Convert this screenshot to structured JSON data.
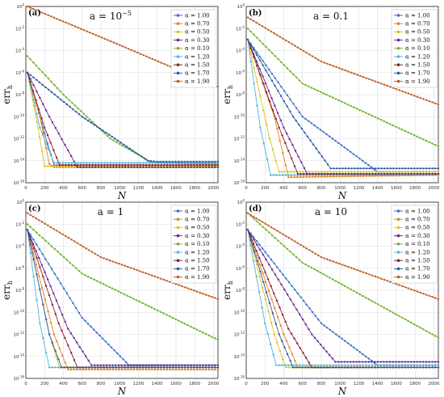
{
  "figure": {
    "ylabel": "err",
    "ylabel_sub": "h",
    "xlabel": "N"
  },
  "colors": [
    "#3a6fc8",
    "#e5851f",
    "#e3c21c",
    "#6a2a8c",
    "#72b52b",
    "#4fb8d8",
    "#8b1f2a",
    "#2d5aa6",
    "#c0602a"
  ],
  "chart_data": [
    {
      "type": "line",
      "panel": "(a)",
      "title": "a = 10",
      "title_sup": "−5",
      "xlim": [
        0,
        2048
      ],
      "ylim_log10": [
        -16,
        0
      ],
      "xticks": [
        0,
        200,
        400,
        600,
        800,
        1000,
        1200,
        1400,
        1600,
        1800,
        2000
      ],
      "yticks_log10": [
        -16,
        -14,
        -12,
        -10,
        -8,
        -6,
        -4,
        -2,
        0
      ],
      "series": [
        {
          "name": "α = 1.00",
          "points": [
            [
              16,
              -6
            ],
            [
              200,
              -11.5
            ],
            [
              300,
              -14.4
            ],
            [
              2048,
              -14.4
            ]
          ]
        },
        {
          "name": "α = 0.70",
          "points": [
            [
              16,
              -6
            ],
            [
              150,
              -10
            ],
            [
              250,
              -14.3
            ],
            [
              300,
              -14.6
            ],
            [
              2048,
              -14.6
            ]
          ]
        },
        {
          "name": "α = 0.50",
          "points": [
            [
              16,
              -6
            ],
            [
              120,
              -10.5
            ],
            [
              200,
              -14.5
            ],
            [
              2048,
              -14.5
            ]
          ]
        },
        {
          "name": "α = 0.30",
          "points": [
            [
              16,
              -6
            ],
            [
              250,
              -10
            ],
            [
              550,
              -14.6
            ],
            [
              2048,
              -14.6
            ]
          ]
        },
        {
          "name": "α = 0.10",
          "points": [
            [
              16,
              -4.5
            ],
            [
              400,
              -8
            ],
            [
              900,
              -12
            ],
            [
              1350,
              -14.2
            ],
            [
              2048,
              -14.3
            ]
          ]
        },
        {
          "name": "α = 1.20",
          "points": [
            [
              16,
              -6
            ],
            [
              150,
              -11
            ],
            [
              300,
              -14.2
            ],
            [
              2048,
              -14.2
            ]
          ]
        },
        {
          "name": "α = 1.50",
          "points": [
            [
              16,
              -6
            ],
            [
              200,
              -11
            ],
            [
              360,
              -14.4
            ],
            [
              2048,
              -14.4
            ]
          ]
        },
        {
          "name": "α = 1.70",
          "points": [
            [
              16,
              -6
            ],
            [
              600,
              -10
            ],
            [
              1300,
              -14
            ],
            [
              1400,
              -14.1
            ],
            [
              2048,
              -14.1
            ]
          ]
        },
        {
          "name": "α = 1.90",
          "points": [
            [
              16,
              0
            ],
            [
              1000,
              -3.5
            ],
            [
              2048,
              -7.3
            ]
          ]
        }
      ],
      "legend": "top-right"
    },
    {
      "type": "line",
      "panel": "(b)",
      "title": "a = 0.1",
      "xlim": [
        0,
        2048
      ],
      "ylim_log10": [
        -16,
        0
      ],
      "xticks": [
        0,
        200,
        400,
        600,
        800,
        1000,
        1200,
        1400,
        1600,
        1800,
        2000
      ],
      "yticks_log10": [
        -16,
        -14,
        -12,
        -10,
        -8,
        -6,
        -4,
        -2,
        0
      ],
      "series": [
        {
          "name": "α = 1.00",
          "points": [
            [
              16,
              -3
            ],
            [
              600,
              -10
            ],
            [
              1400,
              -15
            ],
            [
              2048,
              -15
            ]
          ]
        },
        {
          "name": "α = 0.70",
          "points": [
            [
              16,
              -3
            ],
            [
              300,
              -10
            ],
            [
              450,
              -15.5
            ],
            [
              2048,
              -15.3
            ]
          ]
        },
        {
          "name": "α = 0.50",
          "points": [
            [
              16,
              -3
            ],
            [
              250,
              -12
            ],
            [
              350,
              -15
            ],
            [
              2048,
              -15
            ]
          ]
        },
        {
          "name": "α = 0.30",
          "points": [
            [
              16,
              -3
            ],
            [
              400,
              -11
            ],
            [
              650,
              -15.2
            ],
            [
              2048,
              -15.2
            ]
          ]
        },
        {
          "name": "α = 0.10",
          "points": [
            [
              16,
              -2
            ],
            [
              600,
              -7
            ],
            [
              2048,
              -12.7
            ]
          ]
        },
        {
          "name": "α = 1.20",
          "points": [
            [
              16,
              -3
            ],
            [
              150,
              -11
            ],
            [
              260,
              -15.3
            ],
            [
              2048,
              -15.3
            ]
          ]
        },
        {
          "name": "α = 1.50",
          "points": [
            [
              16,
              -3
            ],
            [
              350,
              -11
            ],
            [
              550,
              -15.2
            ],
            [
              2048,
              -15.2
            ]
          ]
        },
        {
          "name": "α = 1.70",
          "points": [
            [
              16,
              -3
            ],
            [
              500,
              -10
            ],
            [
              900,
              -14.7
            ],
            [
              2048,
              -14.7
            ]
          ]
        },
        {
          "name": "α = 1.90",
          "points": [
            [
              16,
              -1
            ],
            [
              800,
              -5
            ],
            [
              2048,
              -8.9
            ]
          ]
        }
      ],
      "legend": "top-right"
    },
    {
      "type": "line",
      "panel": "(c)",
      "title": "a = 1",
      "xlim": [
        0,
        2048
      ],
      "ylim_log10": [
        -16,
        0
      ],
      "xticks": [
        0,
        200,
        400,
        600,
        800,
        1000,
        1200,
        1400,
        1600,
        1800,
        2000
      ],
      "yticks_log10": [
        -16,
        -14,
        -12,
        -10,
        -8,
        -6,
        -4,
        -2,
        0
      ],
      "series": [
        {
          "name": "α = 1.00",
          "points": [
            [
              16,
              -2.5
            ],
            [
              600,
              -10.5
            ],
            [
              1100,
              -14.8
            ],
            [
              2048,
              -14.8
            ]
          ]
        },
        {
          "name": "α = 0.70",
          "points": [
            [
              16,
              -2.5
            ],
            [
              300,
              -12
            ],
            [
              450,
              -15.2
            ],
            [
              2048,
              -15.2
            ]
          ]
        },
        {
          "name": "α = 0.50",
          "points": [
            [
              16,
              -2.5
            ],
            [
              250,
              -12
            ],
            [
              360,
              -15
            ],
            [
              2048,
              -15
            ]
          ]
        },
        {
          "name": "α = 0.30",
          "points": [
            [
              16,
              -2.5
            ],
            [
              450,
              -11.5
            ],
            [
              700,
              -14.8
            ],
            [
              2048,
              -14.8
            ]
          ]
        },
        {
          "name": "α = 0.10",
          "points": [
            [
              16,
              -2
            ],
            [
              600,
              -6.5
            ],
            [
              2048,
              -12.5
            ]
          ]
        },
        {
          "name": "α = 1.20",
          "points": [
            [
              16,
              -2.5
            ],
            [
              150,
              -11
            ],
            [
              250,
              -15
            ],
            [
              2048,
              -15
            ]
          ]
        },
        {
          "name": "α = 1.50",
          "points": [
            [
              16,
              -2.5
            ],
            [
              350,
              -11
            ],
            [
              550,
              -15
            ],
            [
              2048,
              -15
            ]
          ]
        },
        {
          "name": "α = 1.70",
          "points": [
            [
              16,
              -2.5
            ],
            [
              250,
              -12
            ],
            [
              380,
              -15
            ],
            [
              2048,
              -15
            ]
          ]
        },
        {
          "name": "α = 1.90",
          "points": [
            [
              16,
              -1
            ],
            [
              800,
              -5
            ],
            [
              2048,
              -8.8
            ]
          ]
        }
      ],
      "legend": "top-right"
    },
    {
      "type": "line",
      "panel": "(d)",
      "title": "a = 10",
      "xlim": [
        0,
        2048
      ],
      "ylim_log10": [
        -16,
        0
      ],
      "xticks": [
        0,
        200,
        400,
        600,
        800,
        1000,
        1200,
        1400,
        1600,
        1800,
        2000
      ],
      "yticks_log10": [
        -16,
        -14,
        -12,
        -10,
        -8,
        -6,
        -4,
        -2,
        0
      ],
      "series": [
        {
          "name": "α = 1.00",
          "points": [
            [
              16,
              -2.5
            ],
            [
              800,
              -11
            ],
            [
              1400,
              -14.8
            ],
            [
              2048,
              -14.8
            ]
          ]
        },
        {
          "name": "α = 0.70",
          "points": [
            [
              16,
              -2.5
            ],
            [
              400,
              -12
            ],
            [
              550,
              -15
            ],
            [
              2048,
              -15
            ]
          ]
        },
        {
          "name": "α = 0.50",
          "points": [
            [
              16,
              -2.5
            ],
            [
              300,
              -12
            ],
            [
              420,
              -15
            ],
            [
              2048,
              -15
            ]
          ]
        },
        {
          "name": "α = 0.30",
          "points": [
            [
              16,
              -2.5
            ],
            [
              700,
              -12
            ],
            [
              950,
              -14.5
            ],
            [
              2048,
              -14.5
            ]
          ]
        },
        {
          "name": "α = 0.10",
          "points": [
            [
              16,
              -1
            ],
            [
              600,
              -5.5
            ],
            [
              2048,
              -12.3
            ]
          ]
        },
        {
          "name": "α = 1.20",
          "points": [
            [
              16,
              -2.5
            ],
            [
              200,
              -11
            ],
            [
              320,
              -14.8
            ],
            [
              2048,
              -14.8
            ]
          ]
        },
        {
          "name": "α = 1.50",
          "points": [
            [
              16,
              -2.5
            ],
            [
              450,
              -11.5
            ],
            [
              700,
              -15
            ],
            [
              2048,
              -15
            ]
          ]
        },
        {
          "name": "α = 1.70",
          "points": [
            [
              16,
              -2.5
            ],
            [
              350,
              -12
            ],
            [
              500,
              -15
            ],
            [
              2048,
              -15
            ]
          ]
        },
        {
          "name": "α = 1.90",
          "points": [
            [
              16,
              -1
            ],
            [
              800,
              -5
            ],
            [
              2048,
              -8.8
            ]
          ]
        }
      ],
      "legend": "top-right"
    }
  ]
}
